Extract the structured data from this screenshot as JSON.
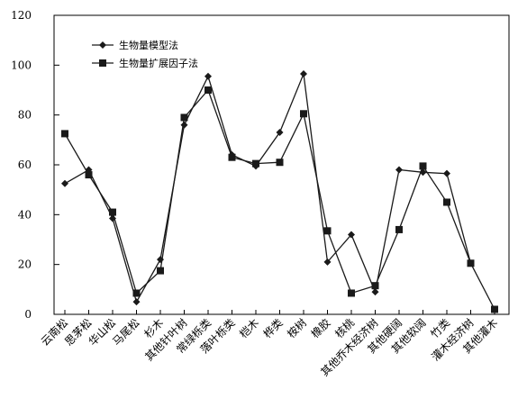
{
  "chart_data": {
    "type": "line",
    "categories": [
      "云南松",
      "思茅松",
      "华山松",
      "马尾松",
      "杉木",
      "其他针叶树",
      "常绿栎类",
      "落叶栎类",
      "桤木",
      "桦类",
      "桉树",
      "橡胶",
      "核桃",
      "其他乔木经济树",
      "其他硬阔",
      "其他软阔",
      "竹类",
      "灌木经济树",
      "其他灌木"
    ],
    "series": [
      {
        "name": "生物量模型法",
        "marker": "diamond",
        "values": [
          52.5,
          58,
          38.5,
          5,
          22,
          76,
          95.5,
          64,
          59.5,
          73,
          96.5,
          21,
          32,
          9,
          58,
          57,
          56.5,
          20.5,
          null
        ]
      },
      {
        "name": "生物量扩展因子法",
        "marker": "square",
        "values": [
          72.5,
          56,
          41,
          8.5,
          17.5,
          79,
          90,
          63,
          60.5,
          61,
          80.5,
          33.5,
          8.5,
          11.5,
          34,
          59.5,
          45,
          20.5,
          2
        ]
      }
    ],
    "yticks": [
      0,
      20,
      40,
      60,
      80,
      100,
      120
    ],
    "ylim": [
      0,
      120
    ],
    "legend_position": "top-left",
    "grid": false,
    "line_color": "#1a1a1a"
  }
}
